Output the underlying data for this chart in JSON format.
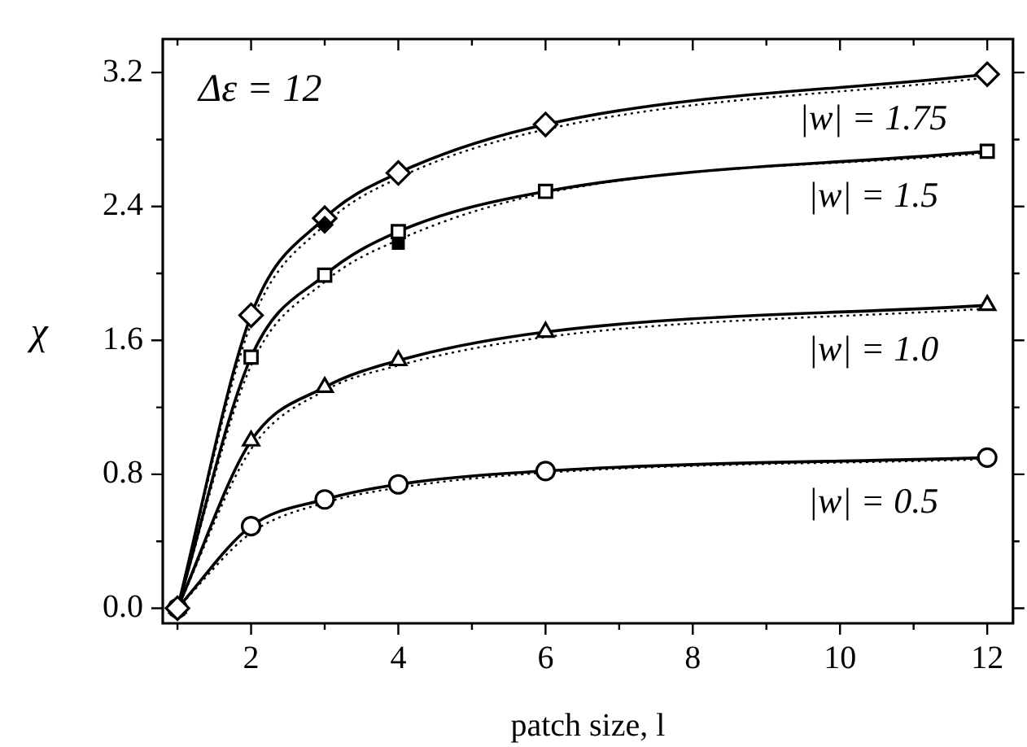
{
  "chart_data": {
    "type": "line",
    "xlabel": "patch size, l",
    "ylabel": "χ",
    "annotations": [
      "Δε = 12"
    ],
    "xlim": [
      0.8,
      12.35
    ],
    "ylim": [
      -0.09,
      3.4
    ],
    "xticks": [
      {
        "value": 1,
        "label": null
      },
      2,
      {
        "value": 3,
        "label": null
      },
      4,
      {
        "value": 5,
        "label": null
      },
      6,
      {
        "value": 7,
        "label": null
      },
      8,
      {
        "value": 9,
        "label": null
      },
      10,
      {
        "value": 11,
        "label": null
      },
      12
    ],
    "yticks": [
      "0.0",
      {
        "value": 0.4,
        "label": null
      },
      {
        "value": 0.8,
        "label": "0.8"
      },
      {
        "value": 1.2,
        "label": null
      },
      {
        "value": 1.6,
        "label": "1.6"
      },
      {
        "value": 2.0,
        "label": null
      },
      {
        "value": 2.4,
        "label": "2.4"
      },
      {
        "value": 2.8,
        "label": null
      },
      {
        "value": 3.2,
        "label": "3.2"
      }
    ],
    "grid": false,
    "legend": "right",
    "series": [
      {
        "type": "line",
        "marker": "none",
        "line_style": "dotted",
        "color": "#000000",
        "x": [
          1,
          2,
          3,
          4,
          6,
          12
        ],
        "values": [
          0,
          1.7,
          2.29,
          2.57,
          2.86,
          3.17
        ]
      },
      {
        "type": "line",
        "marker": "none",
        "line_style": "dotted",
        "color": "#000000",
        "x": [
          1,
          2,
          3,
          4,
          6,
          12
        ],
        "values": [
          0,
          1.45,
          1.95,
          2.2,
          2.48,
          2.72
        ]
      },
      {
        "type": "line",
        "marker": "none",
        "line_style": "dotted",
        "color": "#000000",
        "x": [
          1,
          2,
          3,
          4,
          6,
          12
        ],
        "values": [
          0,
          0.95,
          1.3,
          1.45,
          1.62,
          1.79
        ]
      },
      {
        "type": "line",
        "marker": "none",
        "line_style": "dotted",
        "color": "#000000",
        "x": [
          1,
          2,
          3,
          4,
          6,
          12
        ],
        "values": [
          0,
          0.45,
          0.63,
          0.72,
          0.81,
          0.89
        ]
      },
      {
        "name": "|w| = 0.5",
        "type": "line",
        "marker": "circle",
        "line_style": "solid",
        "color": "#000000",
        "x": [
          1,
          2,
          3,
          4,
          6,
          12
        ],
        "values": [
          0,
          0.49,
          0.65,
          0.74,
          0.82,
          0.9
        ]
      },
      {
        "name": "|w| = 1.0",
        "type": "line",
        "marker": "triangle",
        "line_style": "solid",
        "color": "#000000",
        "x": [
          1,
          2,
          3,
          4,
          6,
          12
        ],
        "values": [
          0,
          1.0,
          1.32,
          1.48,
          1.65,
          1.81
        ]
      },
      {
        "name": "|w| = 1.5",
        "type": "line",
        "marker": "square",
        "line_style": "solid",
        "color": "#000000",
        "x": [
          1,
          2,
          3,
          4,
          6,
          12
        ],
        "values": [
          0,
          1.5,
          1.99,
          2.25,
          2.49,
          2.73
        ]
      },
      {
        "name": "|w| = 1.75",
        "type": "line",
        "marker": "diamond",
        "line_style": "solid",
        "color": "#000000",
        "x": [
          1,
          2,
          3,
          4,
          6,
          12
        ],
        "values": [
          0,
          1.75,
          2.33,
          2.6,
          2.89,
          3.19
        ]
      },
      {
        "type": "scatter",
        "marker": "diamond",
        "color": "#000000",
        "x": [
          3
        ],
        "values": [
          2.29
        ]
      },
      {
        "type": "scatter",
        "marker": "square",
        "color": "#000000",
        "x": [
          4
        ],
        "values": [
          2.18
        ]
      }
    ]
  }
}
